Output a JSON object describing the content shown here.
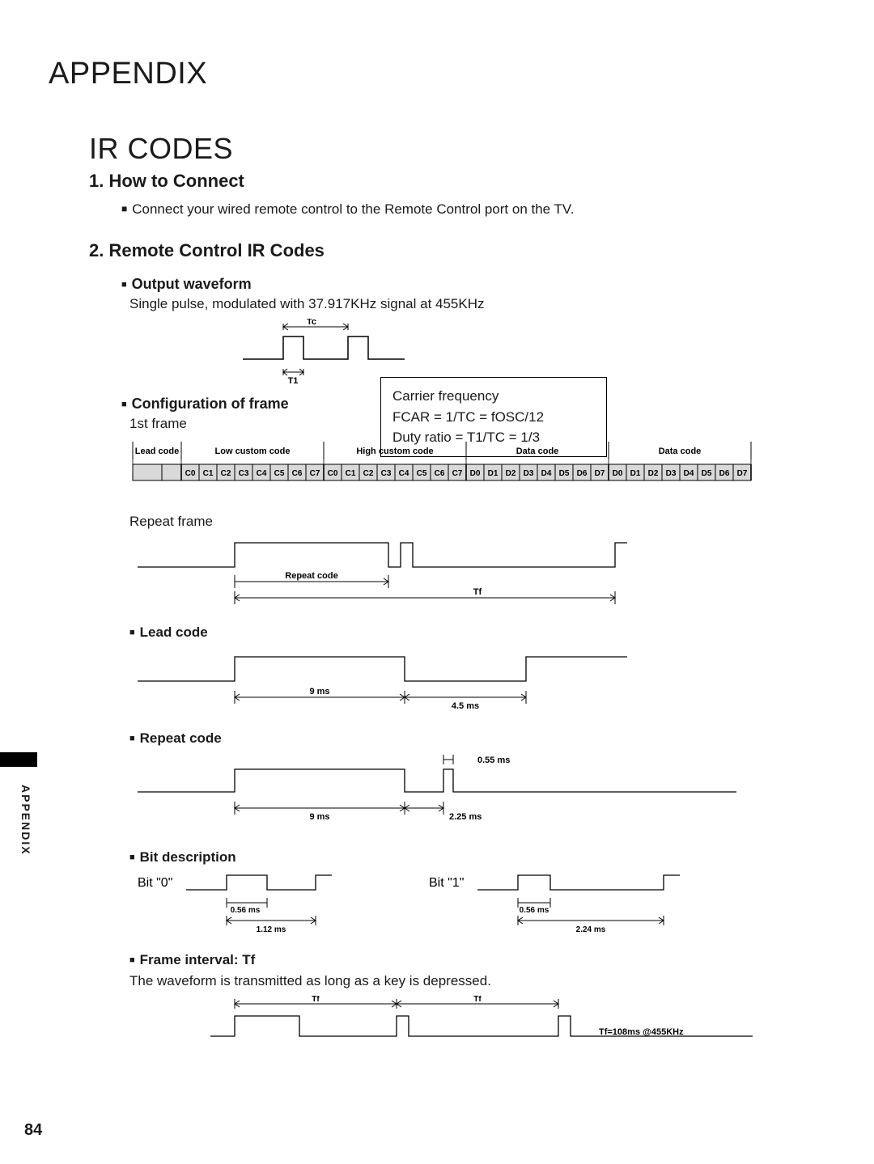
{
  "headings": {
    "appendix": "APPENDIX",
    "ir_codes": "IR CODES",
    "how_to_connect": "1. How to Connect",
    "remote_codes": "2. Remote Control IR Codes"
  },
  "connect_text": "Connect your wired remote control to the Remote Control port on the TV.",
  "output_waveform": {
    "title": "Output waveform",
    "desc": "Single pulse, modulated with 37.917KHz signal at 455KHz",
    "tc_label": "Tc",
    "t1_label": "T1"
  },
  "carrier_box": {
    "l1": "Carrier frequency",
    "l2": "FCAR = 1/TC = fOSC/12",
    "l3": "Duty ratio = T1/TC = 1/3"
  },
  "config_frame": {
    "title": "Configuration of frame",
    "first_frame": "1st frame",
    "headers": [
      "Lead code",
      "Low custom code",
      "High custom code",
      "Data code",
      "Data code"
    ],
    "cells_c": [
      "C0",
      "C1",
      "C2",
      "C3",
      "C4",
      "C5",
      "C6",
      "C7"
    ],
    "cells_d": [
      "D0",
      "D1",
      "D2",
      "D3",
      "D4",
      "D5",
      "D6",
      "D7"
    ],
    "repeat_frame": "Repeat frame",
    "repeat_code_label": "Repeat  code",
    "tf_label": "Tf"
  },
  "lead_code": {
    "title": "Lead code",
    "t9": "9 ms",
    "t45": "4.5 ms"
  },
  "repeat_code": {
    "title": "Repeat code",
    "t055": "0.55 ms",
    "t9": "9 ms",
    "t225": "2.25 ms"
  },
  "bit_desc": {
    "title": "Bit description",
    "bit0": "Bit \"0\"",
    "bit1": "Bit \"1\"",
    "t056": "0.56 ms",
    "t112": "1.12 ms",
    "t224": "2.24 ms"
  },
  "frame_interval": {
    "title": "Frame interval: Tf",
    "desc": "The waveform is transmitted as long as a key is depressed.",
    "tf": "Tf",
    "tf108": "Tf=108ms @455KHz"
  },
  "side_label": "APPENDIX",
  "page_number": "84",
  "colors": {
    "text": "#1a1a1a",
    "line": "#000000",
    "fill_gray": "#d9d9d9",
    "bg": "#ffffff"
  },
  "stroke_width": 1.2
}
